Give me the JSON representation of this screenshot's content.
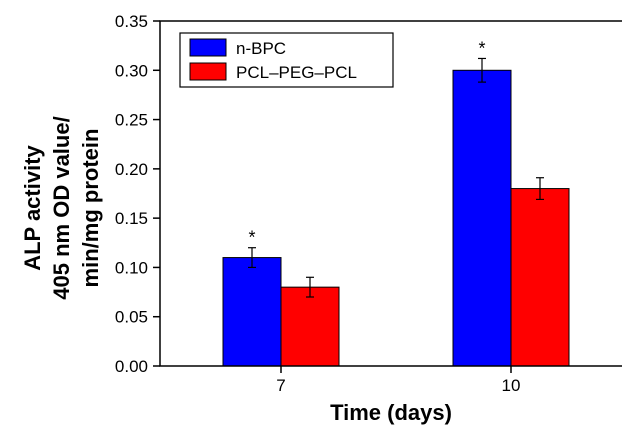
{
  "chart_data": {
    "type": "bar",
    "categories": [
      "7",
      "10"
    ],
    "series": [
      {
        "name": "n-BPC",
        "color": "#0000ff",
        "values": [
          0.11,
          0.3
        ],
        "errors": [
          0.01,
          0.012
        ],
        "annotations": [
          "*",
          "*"
        ]
      },
      {
        "name": "PCL–PEG–PCL",
        "color": "#ff0000",
        "values": [
          0.08,
          0.18
        ],
        "errors": [
          0.01,
          0.011
        ],
        "annotations": [
          "",
          ""
        ]
      }
    ],
    "xlabel": "Time (days)",
    "ylabel_lines": [
      "ALP activity",
      "405 nm OD value/",
      "min/mg protein"
    ],
    "ylim": [
      0,
      0.35
    ],
    "yticks": [
      "0.00",
      "0.05",
      "0.10",
      "0.15",
      "0.20",
      "0.25",
      "0.30",
      "0.35"
    ],
    "legend_position": "top-left",
    "grid": false
  }
}
